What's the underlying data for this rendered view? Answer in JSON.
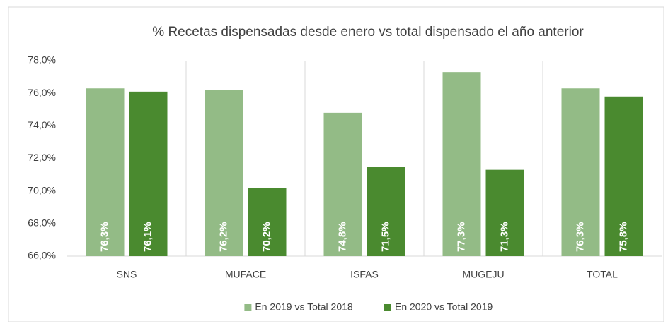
{
  "chart_data": {
    "type": "bar",
    "title": "% Recetas dispensadas desde enero vs total dispensado el año anterior",
    "categories": [
      "SNS",
      "MUFACE",
      "ISFAS",
      "MUGEJU",
      "TOTAL"
    ],
    "series": [
      {
        "name": "En 2019 vs Total 2018",
        "color": "#93bb86",
        "values": [
          76.3,
          76.2,
          74.8,
          77.3,
          76.3
        ],
        "value_labels": [
          "76,3%",
          "76,2%",
          "74,8%",
          "77,3%",
          "76,3%"
        ]
      },
      {
        "name": "En 2020 vs Total 2019",
        "color": "#4a8a2f",
        "values": [
          76.1,
          70.2,
          71.5,
          71.3,
          75.8
        ],
        "value_labels": [
          "76,1%",
          "70,2%",
          "71,5%",
          "71,3%",
          "75,8%"
        ]
      }
    ],
    "ylim": [
      66,
      78
    ],
    "yticks": [
      {
        "value": 66,
        "label": "66,0%"
      },
      {
        "value": 68,
        "label": "68,0%"
      },
      {
        "value": 70,
        "label": "70,0%"
      },
      {
        "value": 72,
        "label": "72,0%"
      },
      {
        "value": 74,
        "label": "74,0%"
      },
      {
        "value": 76,
        "label": "76,0%"
      },
      {
        "value": 78,
        "label": "78,0%"
      }
    ],
    "legend": "bottom"
  }
}
